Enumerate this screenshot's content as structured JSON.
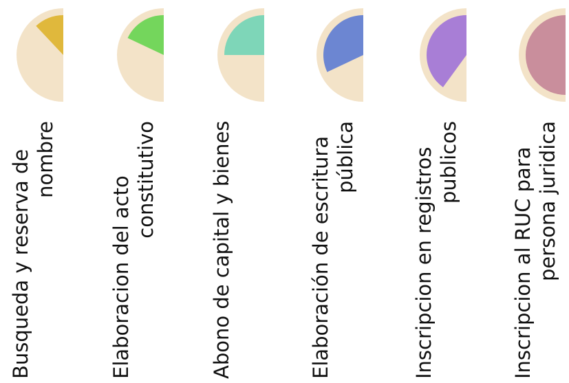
{
  "steps": [
    {
      "line1": "Busqueda y reserva de",
      "line2": "nombre",
      "fill": 0.12,
      "color": "#E0B83C"
    },
    {
      "line1": "Elaboracion del acto",
      "line2": "constitutivo",
      "fill": 0.18,
      "color": "#74D65C"
    },
    {
      "line1": "Abono de capital y bienes",
      "line2": "",
      "fill": 0.25,
      "color": "#7ED6B8"
    },
    {
      "line1": "Elaboración de escritura",
      "line2": "pública",
      "fill": 0.32,
      "color": "#6C86D2"
    },
    {
      "line1": "Inscripcion en registros",
      "line2": "publicos",
      "fill": 0.4,
      "color": "#A87ED6"
    },
    {
      "line1": "Inscripcion al RUC para",
      "line2": "persona juridica",
      "fill": 0.5,
      "color": "#C98E9C"
    }
  ],
  "colors": {
    "disc": "#F3E3C8"
  }
}
